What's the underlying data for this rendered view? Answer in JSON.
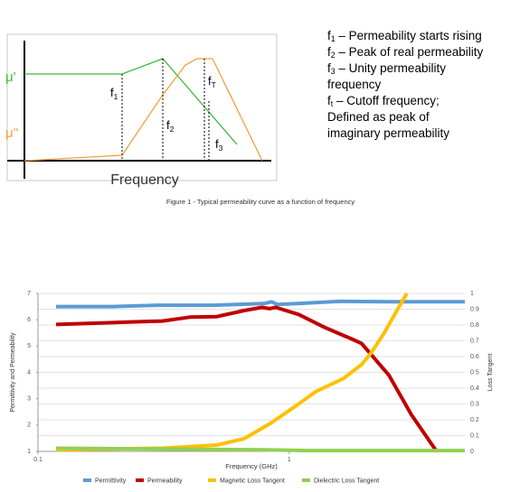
{
  "diagram": {
    "mu_real": "μ'",
    "mu_imag": "μ''",
    "axis_label": "Frequency",
    "markers": [
      {
        "symbol": "f",
        "sub": "1"
      },
      {
        "symbol": "f",
        "sub": "2"
      },
      {
        "symbol": "f",
        "sub": "T"
      },
      {
        "symbol": "f",
        "sub": "3"
      }
    ],
    "notes": [
      {
        "symbol": "f",
        "sub": "1",
        "text": " – Permeability starts rising"
      },
      {
        "symbol": "f",
        "sub": "2",
        "text": " – Peak of real permeability"
      },
      {
        "symbol": "f",
        "sub": "3",
        "text": " – Unity permeability"
      },
      {
        "text": "frequency"
      },
      {
        "symbol": "f",
        "sub": "t",
        "text": " – Cutoff frequency;"
      },
      {
        "text": "Defined as peak of"
      },
      {
        "text": "imaginary permeability"
      }
    ],
    "caption": "Figure 1 - Typical permeability curve as a function of frequency"
  },
  "chart_data": {
    "type": "line",
    "xlabel": "Frequency (GHz)",
    "ylabel": "Permittivity and Permeability",
    "y2label": "Loss Tangent",
    "xscale": "log",
    "xlim": [
      0.1,
      5
    ],
    "xticks": [
      0.1,
      1
    ],
    "ylim": [
      1,
      7
    ],
    "yticks": [
      1,
      2,
      3,
      4,
      5,
      6,
      7
    ],
    "y2lim": [
      0,
      1
    ],
    "y2ticks": [
      0,
      0.1,
      0.2,
      0.3,
      0.4,
      0.5,
      0.6,
      0.7,
      0.8,
      0.9,
      1
    ],
    "grid": true,
    "legend": "bottom",
    "series": [
      {
        "name": "Permittivity",
        "color": "#5b9bd5",
        "x": [
          0.118,
          0.2,
          0.3,
          0.5,
          0.7,
          0.8,
          0.85,
          0.9,
          1.1,
          1.6,
          2.5,
          5
        ],
        "values": [
          6.5,
          6.5,
          6.55,
          6.55,
          6.6,
          6.62,
          6.68,
          6.58,
          6.62,
          6.7,
          6.68,
          6.68
        ]
      },
      {
        "name": "Permeability",
        "color": "#c00000",
        "x": [
          0.118,
          0.244,
          0.313,
          0.402,
          0.515,
          0.661,
          0.78,
          0.834,
          0.883,
          1.09,
          1.39,
          1.79,
          1.94,
          2.49,
          3.06,
          3.86
        ],
        "values": [
          5.82,
          5.92,
          5.95,
          6.1,
          6.12,
          6.35,
          6.47,
          6.42,
          6.47,
          6.2,
          5.7,
          5.25,
          5.1,
          3.9,
          2.4,
          1.0
        ]
      },
      {
        "name": "Magnetic Loss Tangent",
        "color": "#ffc000",
        "axis": "y2",
        "x": [
          0.118,
          0.313,
          0.515,
          0.661,
          0.847,
          1.09,
          1.28,
          1.64,
          1.94,
          2.11,
          2.39,
          2.7,
          2.94
        ],
        "values": [
          0.01,
          0.02,
          0.04,
          0.08,
          0.18,
          0.3,
          0.38,
          0.46,
          0.55,
          0.62,
          0.75,
          0.9,
          1.0
        ]
      },
      {
        "name": "Dielectric Loss Tangent",
        "color": "#92d050",
        "axis": "y2",
        "x": [
          0.118,
          0.3,
          0.8,
          1.2,
          5
        ],
        "values": [
          0.02,
          0.015,
          0.01,
          0.005,
          0.005
        ]
      }
    ]
  }
}
